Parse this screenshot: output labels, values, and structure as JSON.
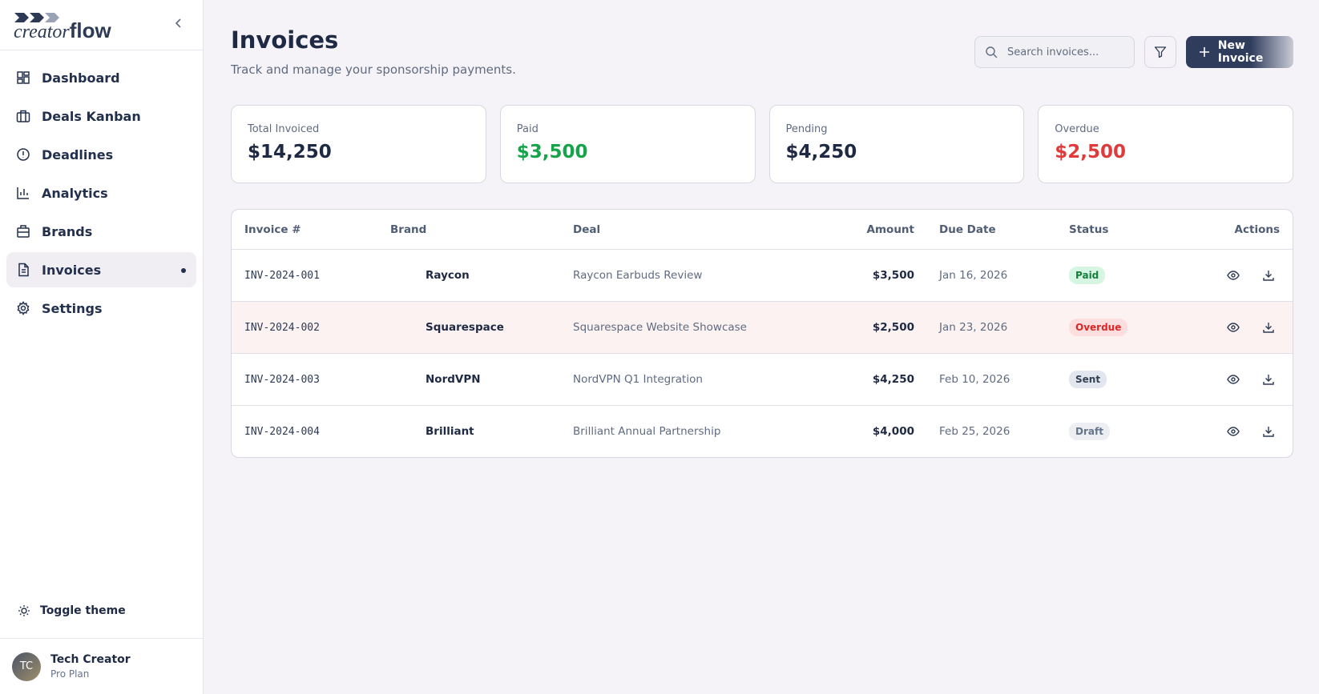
{
  "brand": {
    "prefix": "creator",
    "suffix": "flow"
  },
  "nav": [
    "Dashboard",
    "Deals Kanban",
    "Deadlines",
    "Analytics",
    "Brands",
    "Invoices",
    "Settings"
  ],
  "sidebar_footer": {
    "toggle": "Toggle theme",
    "user": {
      "initials": "TC",
      "name": "Tech Creator",
      "plan": "Pro Plan"
    }
  },
  "header": {
    "title": "Invoices",
    "subtitle": "Track and manage your sponsorship payments.",
    "search_placeholder": "Search invoices...",
    "new_button": "New Invoice"
  },
  "stats": [
    {
      "label": "Total Invoiced",
      "value": "$14,250"
    },
    {
      "label": "Paid",
      "value": "$3,500"
    },
    {
      "label": "Pending",
      "value": "$4,250"
    },
    {
      "label": "Overdue",
      "value": "$2,500"
    }
  ],
  "table": {
    "columns": [
      "Invoice #",
      "Brand",
      "Deal",
      "Amount",
      "Due Date",
      "Status",
      "Actions"
    ],
    "rows": [
      [
        "INV-2024-001",
        "Raycon",
        "Raycon Earbuds Review",
        "$3,500",
        "Jan 16, 2026",
        "Paid"
      ],
      [
        "INV-2024-002",
        "Squarespace",
        "Squarespace Website Showcase",
        "$2,500",
        "Jan 23, 2026",
        "Overdue"
      ],
      [
        "INV-2024-003",
        "NordVPN",
        "NordVPN Q1 Integration",
        "$4,250",
        "Feb 10, 2026",
        "Sent"
      ],
      [
        "INV-2024-004",
        "Brilliant",
        "Brilliant Annual Partnership",
        "$4,000",
        "Feb 25, 2026",
        "Draft"
      ]
    ]
  }
}
